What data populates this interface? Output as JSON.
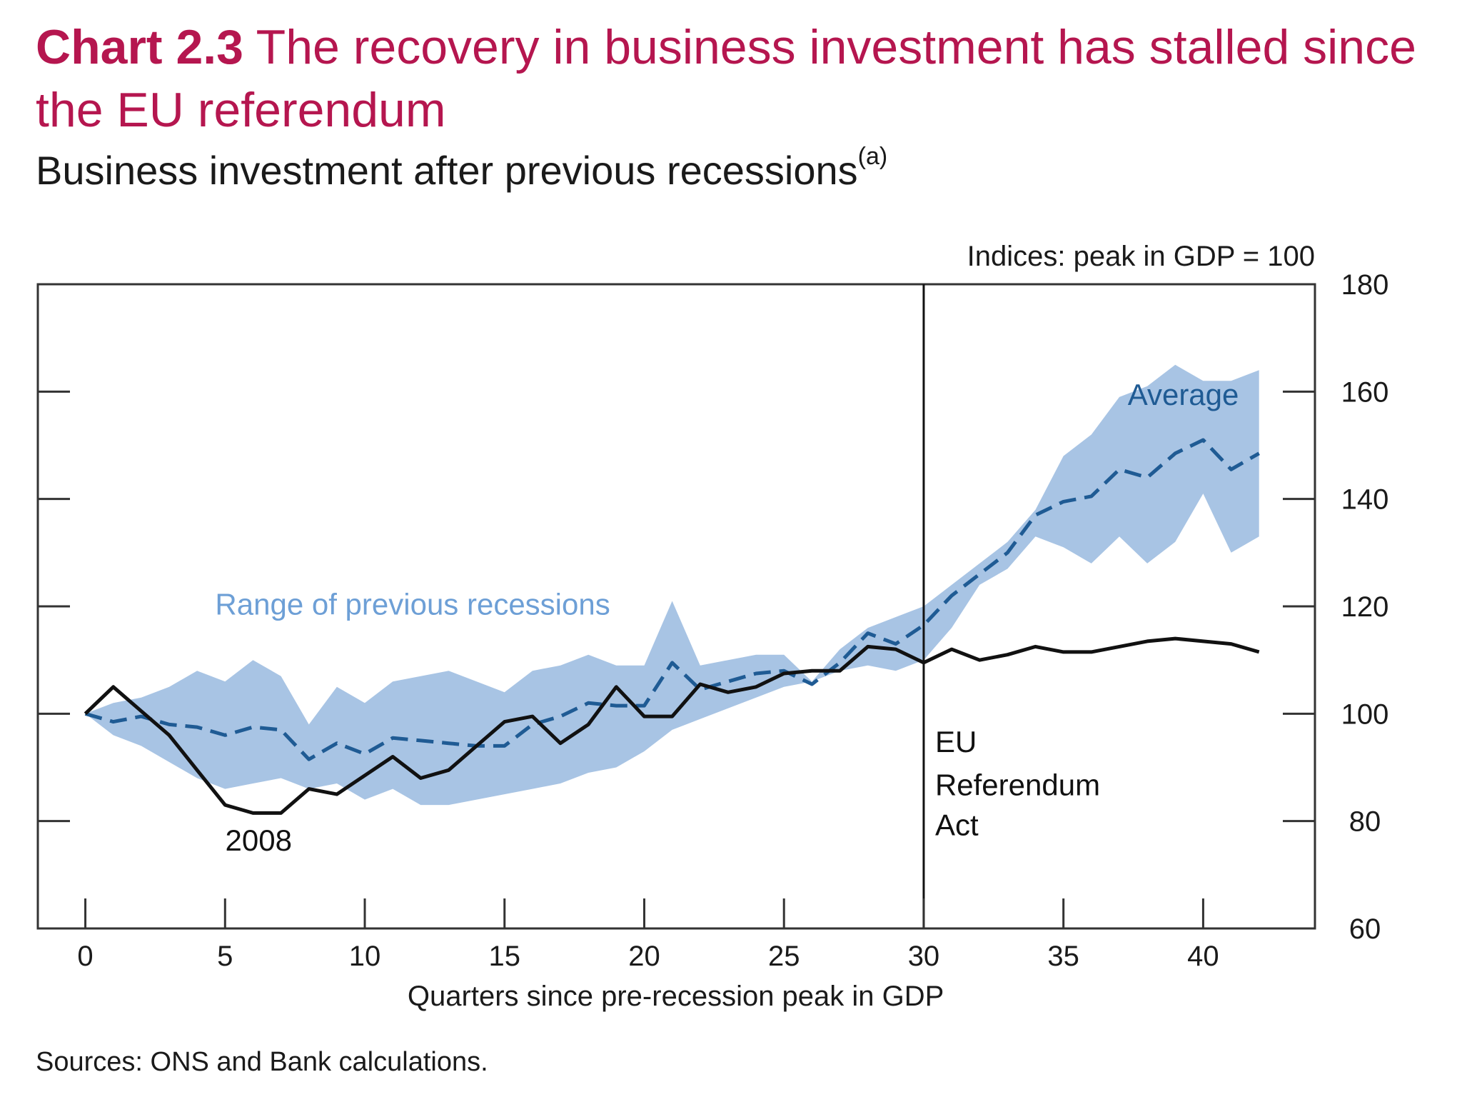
{
  "header": {
    "chart_label": "Chart 2.3",
    "title": "The recovery in business investment has stalled since the EU referendum",
    "subtitle": "Business investment after previous recessions",
    "subtitle_note": "(a)"
  },
  "footer": {
    "sources": "Sources: ONS and Bank calculations."
  },
  "colors": {
    "title": "#b5164f",
    "range_fill": "#a8c4e4",
    "range_label": "#6d9fd6",
    "average_line": "#1f5b94",
    "series_2008": "#111111"
  },
  "chart_data": {
    "type": "line",
    "title": "Business investment after previous recessions",
    "xlabel": "Quarters since pre-recession peak in GDP",
    "ylabel": "Indices: peak in GDP = 100",
    "xlim": [
      -1.7,
      44
    ],
    "ylim": [
      60,
      180
    ],
    "x_ticks": [
      0,
      5,
      10,
      15,
      20,
      25,
      30,
      35,
      40
    ],
    "y_ticks": [
      60,
      80,
      100,
      120,
      140,
      160,
      180
    ],
    "y_axis_side": "right",
    "left_axis_ticks": [
      80,
      100,
      120,
      140,
      160
    ],
    "grid": false,
    "vertical_line": {
      "x": 30,
      "label_lines": [
        "EU",
        "Referendum",
        "Act"
      ]
    },
    "series": [
      {
        "name": "Range of previous recessions",
        "kind": "band",
        "x": [
          0,
          1,
          2,
          3,
          4,
          5,
          6,
          7,
          8,
          9,
          10,
          11,
          12,
          13,
          14,
          15,
          16,
          17,
          18,
          19,
          20,
          21,
          22,
          23,
          24,
          25,
          26,
          27,
          28,
          29,
          30,
          31,
          32,
          33,
          34,
          35,
          36,
          37,
          38,
          39,
          40,
          41,
          42
        ],
        "upper": [
          100,
          102,
          103,
          105,
          108,
          106,
          110,
          107,
          98,
          105,
          102,
          106,
          107,
          108,
          106,
          104,
          108,
          109,
          111,
          109,
          109,
          121,
          109,
          110,
          111,
          111,
          106,
          112,
          116,
          118,
          120,
          124,
          128,
          132,
          138,
          148,
          152,
          159,
          161,
          165,
          162,
          162,
          164
        ],
        "lower": [
          100,
          96,
          94,
          91,
          88,
          86,
          87,
          88,
          86,
          87,
          84,
          86,
          83,
          83,
          84,
          85,
          86,
          87,
          89,
          90,
          93,
          97,
          99,
          101,
          103,
          105,
          106,
          108,
          109,
          108,
          110,
          116,
          124,
          127,
          133,
          131,
          128,
          133,
          128,
          132,
          141,
          130,
          133
        ]
      },
      {
        "name": "Average",
        "kind": "dashed-line",
        "x": [
          0,
          1,
          2,
          3,
          4,
          5,
          6,
          7,
          8,
          9,
          10,
          11,
          12,
          13,
          14,
          15,
          16,
          17,
          18,
          19,
          20,
          21,
          22,
          23,
          24,
          25,
          26,
          27,
          28,
          29,
          30,
          31,
          32,
          33,
          34,
          35,
          36,
          37,
          38,
          39,
          40,
          41,
          42
        ],
        "values": [
          100,
          98.5,
          99.5,
          98,
          97.5,
          96,
          97.5,
          97,
          91.5,
          94.5,
          92.5,
          95.5,
          95,
          94.5,
          94,
          94,
          98,
          99.5,
          102,
          101.5,
          101.5,
          109.5,
          104.5,
          106,
          107.5,
          108,
          105.5,
          109.5,
          115,
          113,
          116.5,
          122,
          126,
          130,
          137,
          139.5,
          140.5,
          145.5,
          144,
          148.5,
          151,
          145.5,
          148.5
        ]
      },
      {
        "name": "2008",
        "kind": "solid-line",
        "x": [
          0,
          1,
          2,
          3,
          4,
          5,
          6,
          7,
          8,
          9,
          10,
          11,
          12,
          13,
          14,
          15,
          16,
          17,
          18,
          19,
          20,
          21,
          22,
          23,
          24,
          25,
          26,
          27,
          28,
          29,
          30,
          31,
          32,
          33,
          34,
          35,
          36,
          37,
          38,
          39,
          40,
          41,
          42
        ],
        "values": [
          100,
          105,
          100.5,
          96,
          89.5,
          83,
          81.5,
          81.5,
          86,
          85,
          88.5,
          92,
          88,
          89.5,
          94,
          98.5,
          99.5,
          94.5,
          98,
          105,
          99.5,
          99.5,
          105.5,
          104,
          105,
          107.5,
          108,
          108,
          112.5,
          112,
          109.5,
          112,
          110,
          111,
          112.5,
          111.5,
          111.5,
          112.5,
          113.5,
          114,
          113.5,
          113,
          111.5
        ]
      }
    ]
  }
}
